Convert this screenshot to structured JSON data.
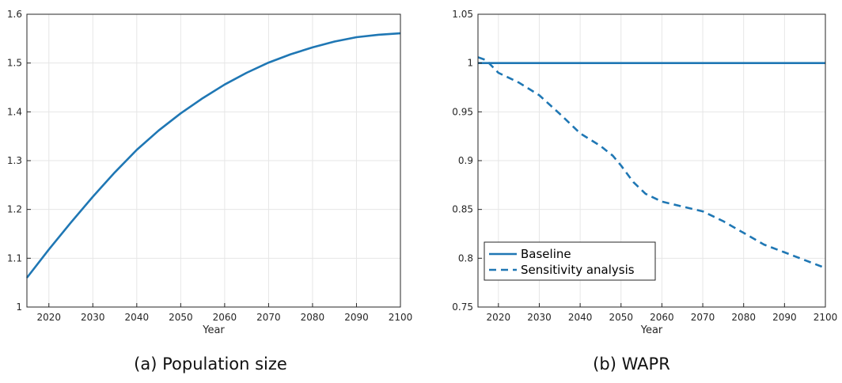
{
  "captions": {
    "a": "(a) Population size",
    "b": "(b) WAPR"
  },
  "chart_data": [
    {
      "type": "line",
      "caption": "(a) Population size",
      "xlabel": "Year",
      "ylabel": "",
      "xlim": [
        2015,
        2100
      ],
      "ylim": [
        1,
        1.6
      ],
      "xticks": [
        2020,
        2030,
        2040,
        2050,
        2060,
        2070,
        2080,
        2090,
        2100
      ],
      "yticks": [
        1,
        1.1,
        1.2,
        1.3,
        1.4,
        1.5,
        1.6
      ],
      "ytick_labels": [
        "1",
        "1.1",
        "1.2",
        "1.3",
        "1.4",
        "1.5",
        "1.6"
      ],
      "grid": true,
      "legend": null,
      "series": [
        {
          "style": "solid",
          "color": "#1f77b4",
          "x": [
            2015,
            2020,
            2025,
            2030,
            2035,
            2040,
            2045,
            2050,
            2055,
            2060,
            2065,
            2070,
            2075,
            2080,
            2085,
            2090,
            2095,
            2100
          ],
          "y": [
            1.06,
            1.118,
            1.173,
            1.226,
            1.276,
            1.322,
            1.362,
            1.397,
            1.428,
            1.456,
            1.48,
            1.501,
            1.518,
            1.532,
            1.544,
            1.553,
            1.558,
            1.561
          ]
        }
      ]
    },
    {
      "type": "line",
      "caption": "(b) WAPR",
      "xlabel": "Year",
      "ylabel": "",
      "xlim": [
        2015,
        2100
      ],
      "ylim": [
        0.75,
        1.05
      ],
      "xticks": [
        2020,
        2030,
        2040,
        2050,
        2060,
        2070,
        2080,
        2090,
        2100
      ],
      "yticks": [
        0.75,
        0.8,
        0.85,
        0.9,
        0.95,
        1,
        1.05
      ],
      "ytick_labels": [
        "0.75",
        "0.8",
        "0.85",
        "0.9",
        "0.95",
        "1",
        "1.05"
      ],
      "grid": true,
      "legend": "bottom-left",
      "series": [
        {
          "name": "Baseline",
          "style": "solid",
          "color": "#1f77b4",
          "x": [
            2015,
            2100
          ],
          "y": [
            1,
            1
          ]
        },
        {
          "name": "Sensitivity analysis",
          "style": "dashed",
          "color": "#1f77b4",
          "x": [
            2015,
            2017,
            2020,
            2025,
            2030,
            2035,
            2040,
            2045,
            2048,
            2050,
            2053,
            2056,
            2060,
            2065,
            2070,
            2075,
            2080,
            2085,
            2090,
            2095,
            2100
          ],
          "y": [
            1.006,
            1.003,
            0.99,
            0.98,
            0.967,
            0.948,
            0.928,
            0.915,
            0.905,
            0.895,
            0.878,
            0.866,
            0.858,
            0.853,
            0.848,
            0.838,
            0.826,
            0.814,
            0.806,
            0.798,
            0.79
          ]
        }
      ]
    }
  ]
}
